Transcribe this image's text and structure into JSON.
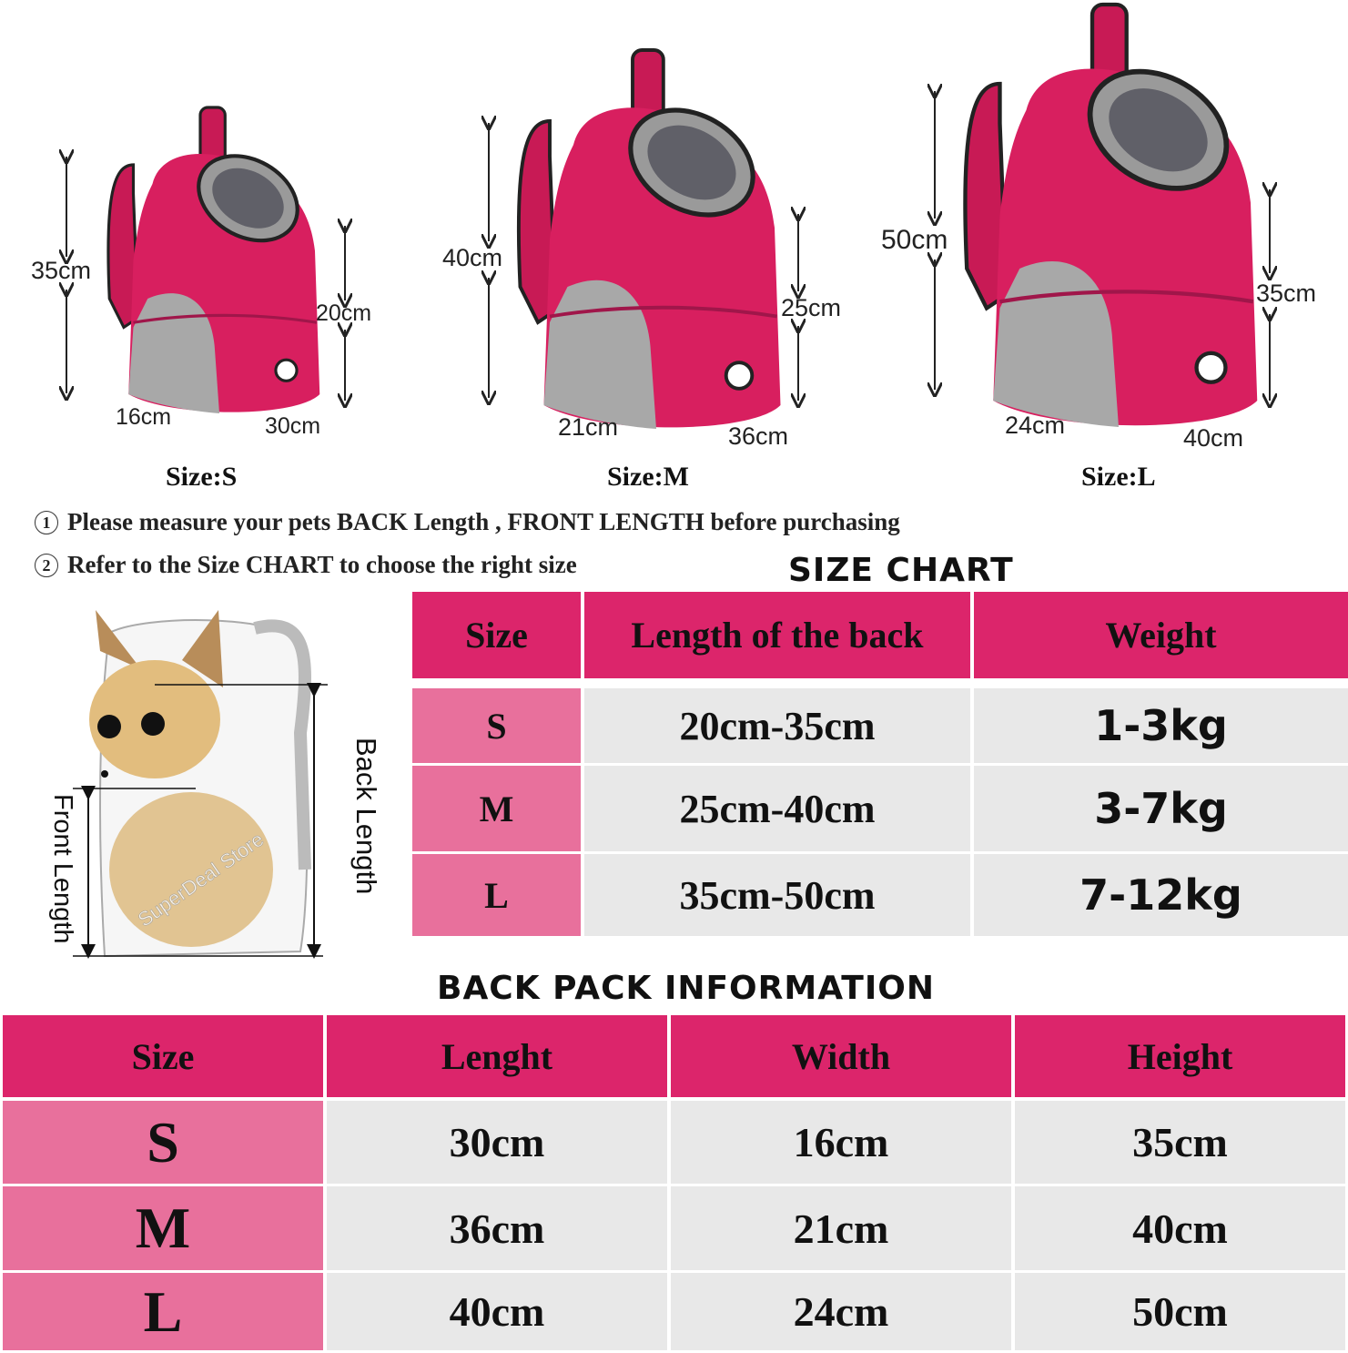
{
  "products": [
    {
      "size_label": "Size:S",
      "height": "35cm",
      "front": "20cm",
      "width": "16cm",
      "length": "30cm"
    },
    {
      "size_label": "Size:M",
      "height": "40cm",
      "front": "25cm",
      "width": "21cm",
      "length": "36cm"
    },
    {
      "size_label": "Size:L",
      "height": "50cm",
      "front": "35cm",
      "width": "24cm",
      "length": "40cm"
    }
  ],
  "notes": [
    {
      "num": "1",
      "text": "Please measure your pets BACK  Length , FRONT LENGTH before purchasing"
    },
    {
      "num": "2",
      "text": "Refer to the Size CHART to choose the right size"
    }
  ],
  "diagram": {
    "front_label": "Front Length",
    "back_label": "Back Length",
    "watermark": "SuperDeal Store"
  },
  "size_chart": {
    "title": "SIZE CHART",
    "headers": [
      "Size",
      "Length of the back",
      "Weight"
    ],
    "rows": [
      [
        "S",
        "20cm-35cm",
        "1-3kg"
      ],
      [
        "M",
        "25cm-40cm",
        "3-7kg"
      ],
      [
        "L",
        "35cm-50cm",
        "7-12kg"
      ]
    ]
  },
  "backpack_info": {
    "title": "BACK PACK INFORMATION",
    "headers": [
      "Size",
      "Lenght",
      "Width",
      "Height"
    ],
    "rows": [
      [
        "S",
        "30cm",
        "16cm",
        "35cm"
      ],
      [
        "M",
        "36cm",
        "21cm",
        "40cm"
      ],
      [
        "L",
        "40cm",
        "24cm",
        "50cm"
      ]
    ]
  },
  "colors": {
    "header": "#dc256b",
    "size_cell": "#e8709c",
    "data_cell": "#e8e8e8",
    "backpack": "#d81f5f"
  }
}
